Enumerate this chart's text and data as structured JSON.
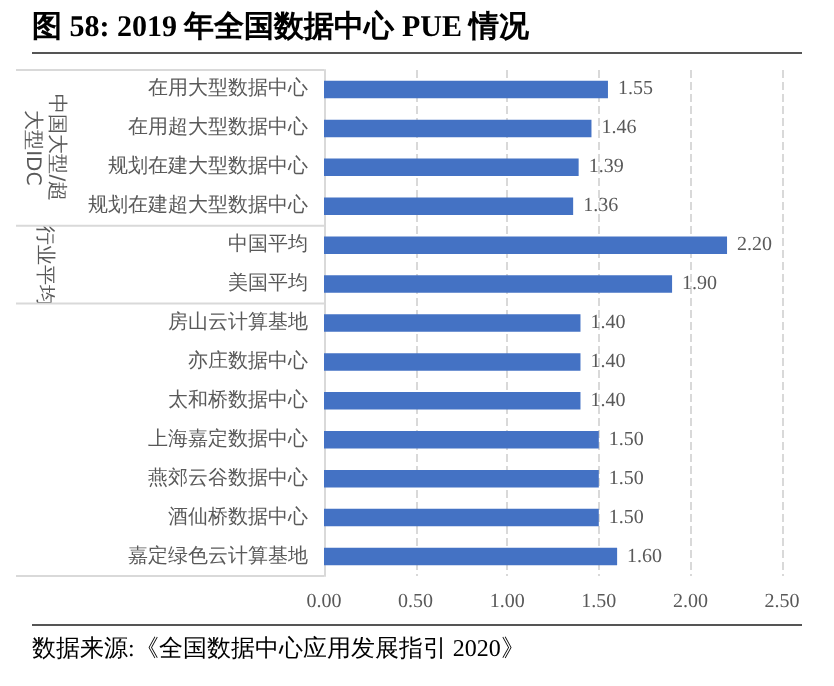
{
  "chart_data": {
    "type": "bar",
    "orientation": "horizontal",
    "title": "图 58: 2019 年全国数据中心 PUE 情况",
    "categories": [
      "在用大型数据中心",
      "在用超大型数据中心",
      "规划在建大型数据中心",
      "规划在建超大型数据中心",
      "中国平均",
      "美国平均",
      "房山云计算基地",
      "亦庄数据中心",
      "太和桥数据中心",
      "上海嘉定数据中心",
      "燕郊云谷数据中心",
      "酒仙桥数据中心",
      "嘉定绿色云计算基地"
    ],
    "values": [
      1.55,
      1.46,
      1.39,
      1.36,
      2.2,
      1.9,
      1.4,
      1.4,
      1.4,
      1.5,
      1.5,
      1.5,
      1.6
    ],
    "value_labels": [
      "1.55",
      "1.46",
      "1.39",
      "1.36",
      "2.20",
      "1.90",
      "1.40",
      "1.40",
      "1.40",
      "1.50",
      "1.50",
      "1.50",
      "1.60"
    ],
    "color": "#4472c4",
    "xlim": [
      0,
      2.5
    ],
    "xticks": [
      {
        "value": 0,
        "label": "0.00"
      },
      {
        "value": 0.5,
        "label": "0.50"
      },
      {
        "value": 1,
        "label": "1.00"
      },
      {
        "value": 1.5,
        "label": "1.50"
      },
      {
        "value": 2,
        "label": "2.00"
      },
      {
        "value": 2.5,
        "label": "2.50"
      }
    ],
    "grid": "x",
    "annotations": [
      "中国大型/超大型IDC",
      "行业平均",
      "数据来源:《全国数据中心应用发展指引 2020》"
    ]
  }
}
